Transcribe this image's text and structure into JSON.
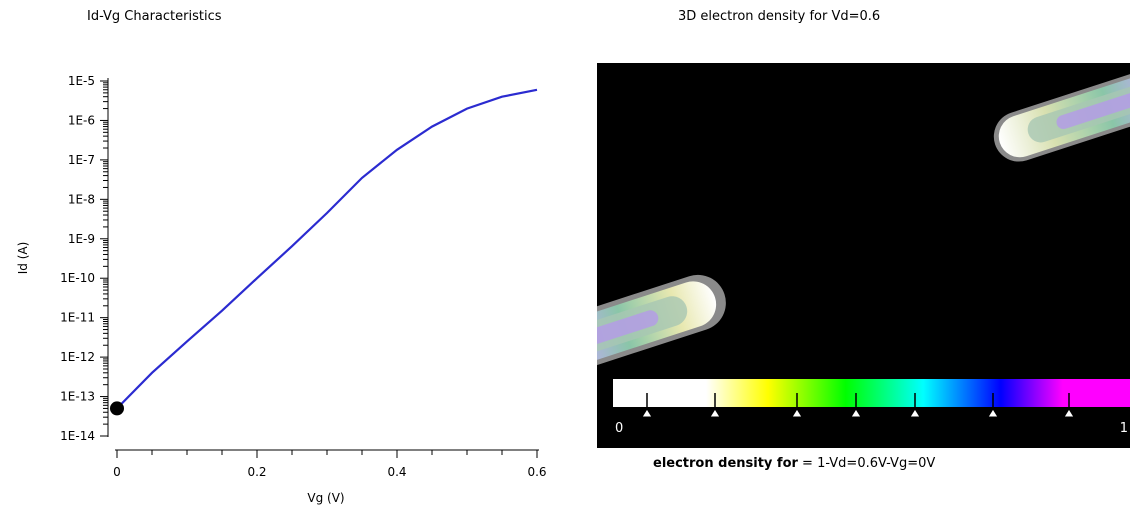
{
  "chart_data": [
    {
      "type": "line",
      "title": "Id-Vg Characteristics",
      "xlabel": "Vg (V)",
      "ylabel": "Id (A)",
      "xlim": [
        0,
        0.6
      ],
      "ylim": [
        1e-14,
        1e-05
      ],
      "y_scale": "log",
      "x_ticks": [
        "0",
        "0.2",
        "0.4",
        "0.6"
      ],
      "y_ticks": [
        "1E-14",
        "1E-13",
        "1E-12",
        "1E-11",
        "1E-10",
        "1E-9",
        "1E-8",
        "1E-7",
        "1E-6",
        "1E-5"
      ],
      "series": [
        {
          "color": "#2b2bd0",
          "x": [
            0,
            0.05,
            0.1,
            0.15,
            0.2,
            0.25,
            0.3,
            0.35,
            0.4,
            0.45,
            0.5,
            0.55,
            0.6
          ],
          "y": [
            5e-14,
            4e-13,
            2.5e-12,
            1.5e-11,
            1e-10,
            6.5e-10,
            4.5e-09,
            3.5e-08,
            1.8e-07,
            7e-07,
            2e-06,
            4e-06,
            6e-06
          ]
        }
      ],
      "marker": {
        "x": 0,
        "y": 5e-14,
        "color": "#000000"
      }
    },
    {
      "type": "heatmap",
      "title": "3D electron density for Vd=0.6",
      "colorbar": {
        "min_label": "0",
        "max_label": "1"
      },
      "caption_bold": "electron density for",
      "caption_rest": " = 1-Vd=0.6V-Vg=0V"
    }
  ]
}
